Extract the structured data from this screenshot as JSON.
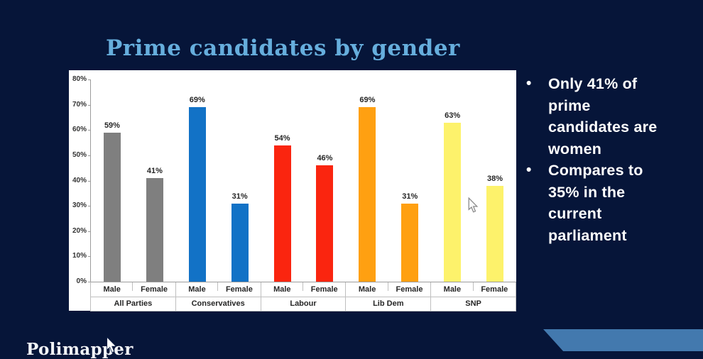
{
  "slide": {
    "title": "Prime candidates by gender",
    "bullets": [
      {
        "marker": "•",
        "text": "Only 41% of\nprime\ncandidates are\nwomen"
      },
      {
        "marker": "•",
        "text": "Compares to\n35% in the\ncurrent\nparliament"
      }
    ],
    "footer_logo_text": "Polimapper"
  },
  "colors": {
    "background": "#061539",
    "title_text": "#66aedd",
    "bullet_text": "#ffffff",
    "chart_background": "#ffffff",
    "banner": "#4379ae",
    "all_parties_gray": "#7f7f7f",
    "conservatives_blue": "#1272c6",
    "labour_red": "#fa250f",
    "lib_dem_orange": "#ffa011",
    "snp_yellow": "#fdf26b"
  },
  "chart_data": {
    "type": "bar",
    "title": "Prime candidates by gender",
    "categories": [
      "All Parties",
      "Conservatives",
      "Labour",
      "Lib Dem",
      "SNP"
    ],
    "sub_categories": [
      "Male",
      "Female"
    ],
    "groups": [
      {
        "label": "All Parties",
        "color": "#7f7f7f",
        "bars": [
          {
            "label": "Male",
            "value": 59
          },
          {
            "label": "Female",
            "value": 41
          }
        ]
      },
      {
        "label": "Conservatives",
        "color": "#1272c6",
        "bars": [
          {
            "label": "Male",
            "value": 69
          },
          {
            "label": "Female",
            "value": 31
          }
        ]
      },
      {
        "label": "Labour",
        "color": "#fa250f",
        "bars": [
          {
            "label": "Male",
            "value": 54
          },
          {
            "label": "Female",
            "value": 46
          }
        ]
      },
      {
        "label": "Lib Dem",
        "color": "#ffa011",
        "bars": [
          {
            "label": "Male",
            "value": 69
          },
          {
            "label": "Female",
            "value": 31
          }
        ]
      },
      {
        "label": "SNP",
        "color": "#fdf26b",
        "bars": [
          {
            "label": "Male",
            "value": 63
          },
          {
            "label": "Female",
            "value": 38
          }
        ]
      }
    ],
    "ylabel": "",
    "xlabel": "",
    "ylim": [
      0,
      80
    ],
    "y_ticks": [
      "80%",
      "70%",
      "60%",
      "50%",
      "40%",
      "30%",
      "20%",
      "10%",
      "0%"
    ],
    "data_label_suffix": "%",
    "grid": false,
    "legend": "none"
  }
}
